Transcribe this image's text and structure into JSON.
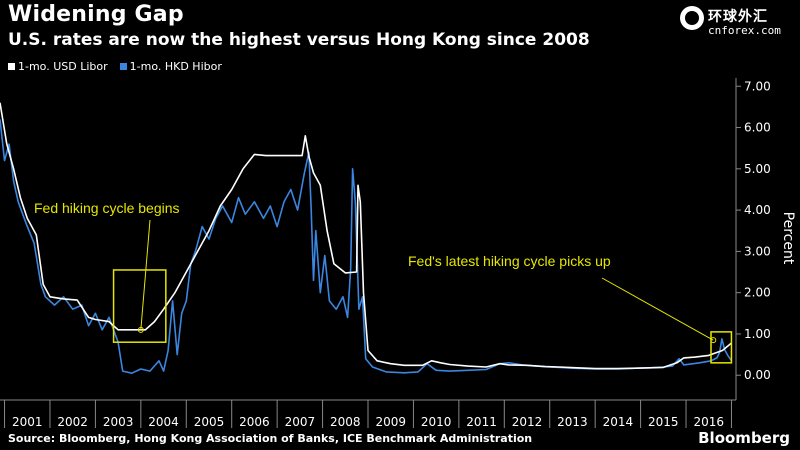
{
  "title": "Widening Gap",
  "subtitle": "U.S. rates are now the highest versus Hong Kong since 2008",
  "logo": {
    "cn": "环球外汇",
    "url": "cnforex.com"
  },
  "source": "Source: Bloomberg, Hong Kong Association of Banks,  ICE Benchmark Administration",
  "brand": "Bloomberg",
  "colors": {
    "usd": "#ffffff",
    "hkd": "#3a86e0",
    "annotation": "#e6e600",
    "background": "#000000"
  },
  "chart_data": {
    "type": "line",
    "title": "Widening Gap",
    "subtitle": "U.S. rates are now the highest versus Hong Kong since 2008",
    "ylabel": "Percent",
    "ylim": [
      -0.6,
      7.2
    ],
    "xlim": [
      2000.9,
      2017.1
    ],
    "y_ticks": [
      0,
      1,
      2,
      3,
      4,
      5,
      6,
      7
    ],
    "y_tick_labels": [
      "0.00",
      "1.00",
      "2.00",
      "3.00",
      "4.00",
      "5.00",
      "6.00",
      "7.00"
    ],
    "x_tick_labels": [
      "2001",
      "2002",
      "2003",
      "2004",
      "2005",
      "2006",
      "2007",
      "2008",
      "2009",
      "2010",
      "2011",
      "2012",
      "2013",
      "2014",
      "2015",
      "2016"
    ],
    "legend_position": "top-left",
    "grid": false,
    "series": [
      {
        "name": "1-mo. USD Libor",
        "color": "#ffffff",
        "points": [
          [
            2000.9,
            6.6
          ],
          [
            2001.05,
            5.6
          ],
          [
            2001.2,
            5.0
          ],
          [
            2001.35,
            4.3
          ],
          [
            2001.5,
            3.8
          ],
          [
            2001.7,
            3.4
          ],
          [
            2001.85,
            2.2
          ],
          [
            2002.0,
            1.9
          ],
          [
            2002.3,
            1.85
          ],
          [
            2002.6,
            1.82
          ],
          [
            2002.85,
            1.4
          ],
          [
            2003.0,
            1.35
          ],
          [
            2003.3,
            1.3
          ],
          [
            2003.5,
            1.1
          ],
          [
            2003.8,
            1.1
          ],
          [
            2004.1,
            1.1
          ],
          [
            2004.3,
            1.3
          ],
          [
            2004.5,
            1.6
          ],
          [
            2004.75,
            2.0
          ],
          [
            2005.0,
            2.5
          ],
          [
            2005.25,
            3.0
          ],
          [
            2005.5,
            3.5
          ],
          [
            2005.75,
            4.1
          ],
          [
            2006.0,
            4.5
          ],
          [
            2006.25,
            5.0
          ],
          [
            2006.5,
            5.35
          ],
          [
            2006.75,
            5.32
          ],
          [
            2007.0,
            5.32
          ],
          [
            2007.3,
            5.32
          ],
          [
            2007.55,
            5.32
          ],
          [
            2007.62,
            5.8
          ],
          [
            2007.7,
            5.3
          ],
          [
            2007.8,
            4.9
          ],
          [
            2007.95,
            4.6
          ],
          [
            2008.1,
            3.5
          ],
          [
            2008.25,
            2.7
          ],
          [
            2008.5,
            2.48
          ],
          [
            2008.75,
            2.5
          ],
          [
            2008.78,
            4.6
          ],
          [
            2008.83,
            4.2
          ],
          [
            2008.9,
            2.0
          ],
          [
            2009.0,
            0.6
          ],
          [
            2009.2,
            0.35
          ],
          [
            2009.5,
            0.28
          ],
          [
            2009.8,
            0.24
          ],
          [
            2010.2,
            0.24
          ],
          [
            2010.4,
            0.35
          ],
          [
            2010.6,
            0.3
          ],
          [
            2010.8,
            0.26
          ],
          [
            2011.2,
            0.22
          ],
          [
            2011.6,
            0.2
          ],
          [
            2011.9,
            0.28
          ],
          [
            2012.1,
            0.25
          ],
          [
            2012.5,
            0.24
          ],
          [
            2012.9,
            0.21
          ],
          [
            2013.2,
            0.2
          ],
          [
            2013.6,
            0.18
          ],
          [
            2014.0,
            0.16
          ],
          [
            2014.5,
            0.16
          ],
          [
            2014.9,
            0.17
          ],
          [
            2015.2,
            0.18
          ],
          [
            2015.5,
            0.19
          ],
          [
            2015.8,
            0.3
          ],
          [
            2015.95,
            0.42
          ],
          [
            2016.2,
            0.44
          ],
          [
            2016.5,
            0.48
          ],
          [
            2016.8,
            0.6
          ],
          [
            2017.0,
            0.78
          ]
        ]
      },
      {
        "name": "1-mo. HKD Hibor",
        "color": "#3a86e0",
        "points": [
          [
            2000.9,
            6.2
          ],
          [
            2001.0,
            5.2
          ],
          [
            2001.1,
            5.6
          ],
          [
            2001.2,
            4.7
          ],
          [
            2001.3,
            4.2
          ],
          [
            2001.4,
            3.9
          ],
          [
            2001.5,
            3.6
          ],
          [
            2001.65,
            3.2
          ],
          [
            2001.8,
            2.2
          ],
          [
            2001.9,
            1.9
          ],
          [
            2002.1,
            1.7
          ],
          [
            2002.3,
            1.9
          ],
          [
            2002.5,
            1.6
          ],
          [
            2002.7,
            1.7
          ],
          [
            2002.85,
            1.2
          ],
          [
            2003.0,
            1.5
          ],
          [
            2003.15,
            1.1
          ],
          [
            2003.3,
            1.4
          ],
          [
            2003.5,
            0.8
          ],
          [
            2003.6,
            0.1
          ],
          [
            2003.8,
            0.05
          ],
          [
            2004.0,
            0.15
          ],
          [
            2004.2,
            0.1
          ],
          [
            2004.4,
            0.35
          ],
          [
            2004.5,
            0.1
          ],
          [
            2004.6,
            0.6
          ],
          [
            2004.7,
            1.8
          ],
          [
            2004.8,
            0.5
          ],
          [
            2004.9,
            1.5
          ],
          [
            2005.0,
            1.8
          ],
          [
            2005.1,
            2.7
          ],
          [
            2005.2,
            3.0
          ],
          [
            2005.35,
            3.6
          ],
          [
            2005.5,
            3.3
          ],
          [
            2005.65,
            3.8
          ],
          [
            2005.8,
            4.1
          ],
          [
            2006.0,
            3.7
          ],
          [
            2006.15,
            4.3
          ],
          [
            2006.3,
            3.9
          ],
          [
            2006.5,
            4.2
          ],
          [
            2006.7,
            3.8
          ],
          [
            2006.85,
            4.1
          ],
          [
            2007.0,
            3.6
          ],
          [
            2007.15,
            4.2
          ],
          [
            2007.3,
            4.5
          ],
          [
            2007.45,
            4.0
          ],
          [
            2007.6,
            4.9
          ],
          [
            2007.7,
            5.4
          ],
          [
            2007.75,
            4.0
          ],
          [
            2007.8,
            2.3
          ],
          [
            2007.85,
            3.5
          ],
          [
            2007.95,
            2.0
          ],
          [
            2008.05,
            2.9
          ],
          [
            2008.15,
            1.8
          ],
          [
            2008.3,
            1.6
          ],
          [
            2008.45,
            1.9
          ],
          [
            2008.55,
            1.4
          ],
          [
            2008.62,
            2.6
          ],
          [
            2008.66,
            5.0
          ],
          [
            2008.72,
            4.2
          ],
          [
            2008.8,
            1.6
          ],
          [
            2008.88,
            1.9
          ],
          [
            2008.95,
            0.4
          ],
          [
            2009.1,
            0.2
          ],
          [
            2009.4,
            0.08
          ],
          [
            2009.8,
            0.06
          ],
          [
            2010.1,
            0.08
          ],
          [
            2010.3,
            0.28
          ],
          [
            2010.5,
            0.12
          ],
          [
            2010.8,
            0.1
          ],
          [
            2011.2,
            0.12
          ],
          [
            2011.6,
            0.14
          ],
          [
            2011.9,
            0.28
          ],
          [
            2012.1,
            0.3
          ],
          [
            2012.4,
            0.25
          ],
          [
            2012.7,
            0.22
          ],
          [
            2013.0,
            0.2
          ],
          [
            2013.5,
            0.17
          ],
          [
            2014.0,
            0.15
          ],
          [
            2014.5,
            0.15
          ],
          [
            2014.9,
            0.17
          ],
          [
            2015.2,
            0.18
          ],
          [
            2015.5,
            0.2
          ],
          [
            2015.7,
            0.22
          ],
          [
            2015.85,
            0.4
          ],
          [
            2015.95,
            0.25
          ],
          [
            2016.3,
            0.3
          ],
          [
            2016.55,
            0.35
          ],
          [
            2016.68,
            0.42
          ],
          [
            2016.74,
            0.55
          ],
          [
            2016.79,
            0.88
          ],
          [
            2016.85,
            0.62
          ],
          [
            2016.92,
            0.48
          ],
          [
            2017.0,
            0.35
          ]
        ]
      }
    ],
    "annotations": [
      {
        "text": "Fed hiking cycle begins",
        "box": {
          "x0": 2003.4,
          "x1": 2004.55,
          "y0": 0.8,
          "y1": 2.55
        },
        "target": [
          2004.0,
          1.1
        ]
      },
      {
        "text": "Fed's latest hiking cycle picks up",
        "box": {
          "x0": 2016.55,
          "x1": 2017.0,
          "y0": 0.3,
          "y1": 1.05
        },
        "target": [
          2016.6,
          0.85
        ]
      }
    ]
  }
}
